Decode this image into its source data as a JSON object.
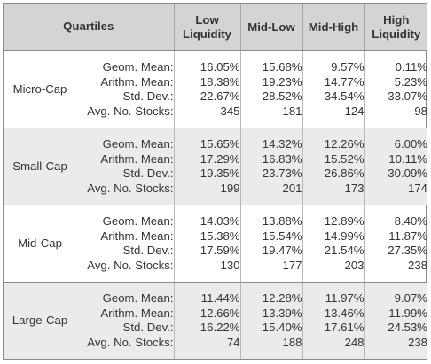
{
  "header": {
    "quartiles_label": "Quartiles",
    "columns": [
      {
        "line1": "Low",
        "line2": "Liquidity"
      },
      {
        "line1": "Mid-Low",
        "line2": ""
      },
      {
        "line1": "Mid-High",
        "line2": ""
      },
      {
        "line1": "High",
        "line2": "Liquidity"
      }
    ]
  },
  "metrics": [
    "Geom. Mean:",
    "Arithm. Mean:",
    "Std. Dev.:",
    "Avg. No. Stocks:"
  ],
  "groups": [
    {
      "name": "Micro-Cap",
      "shaded": false,
      "values": [
        [
          "16.05%",
          "15.68%",
          "9.57%",
          "0.11%"
        ],
        [
          "18.38%",
          "19.23%",
          "14.77%",
          "5.23%"
        ],
        [
          "22.67%",
          "28.52%",
          "34.54%",
          "33.07%"
        ],
        [
          "345",
          "181",
          "124",
          "98"
        ]
      ]
    },
    {
      "name": "Small-Cap",
      "shaded": true,
      "values": [
        [
          "15.65%",
          "14.32%",
          "12.26%",
          "6.00%"
        ],
        [
          "17.29%",
          "16.83%",
          "15.52%",
          "10.11%"
        ],
        [
          "19.35%",
          "23.73%",
          "26.86%",
          "30.09%"
        ],
        [
          "199",
          "201",
          "173",
          "174"
        ]
      ]
    },
    {
      "name": "Mid-Cap",
      "shaded": false,
      "values": [
        [
          "14.03%",
          "13.88%",
          "12.89%",
          "8.40%"
        ],
        [
          "15.38%",
          "15.54%",
          "14.99%",
          "11.87%"
        ],
        [
          "17.59%",
          "19.47%",
          "21.54%",
          "27.35%"
        ],
        [
          "130",
          "177",
          "203",
          "238"
        ]
      ]
    },
    {
      "name": "Large-Cap",
      "shaded": true,
      "values": [
        [
          "11.44%",
          "12.28%",
          "11.97%",
          "9.07%"
        ],
        [
          "12.66%",
          "13.39%",
          "13.46%",
          "11.99%"
        ],
        [
          "16.22%",
          "15.40%",
          "17.61%",
          "24.53%"
        ],
        [
          "74",
          "188",
          "248",
          "238"
        ]
      ]
    }
  ]
}
